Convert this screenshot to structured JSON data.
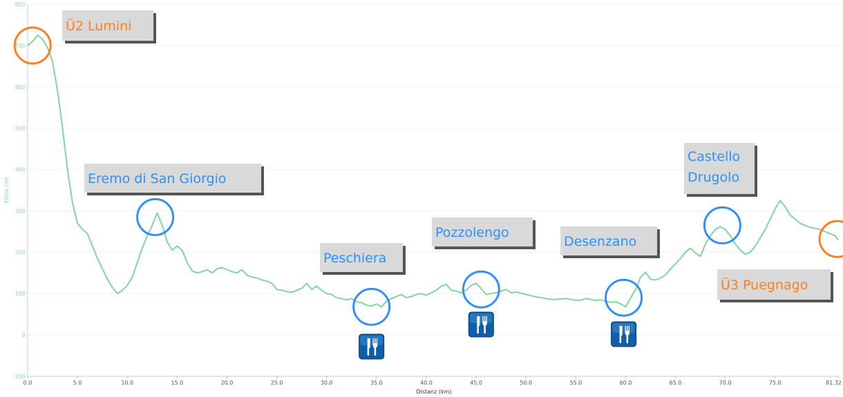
{
  "colors": {
    "line": "#7fd79c",
    "blue": "#2f8fff",
    "orange": "#ff7f1f",
    "label_bg": "#d9d9d9",
    "icon_bg": "#0d5fa8"
  },
  "chart_data": {
    "type": "line",
    "xlabel": "Distanz (km)",
    "ylabel": "Höhe (m)",
    "xlim": [
      0,
      81.32
    ],
    "ylim": [
      -100,
      800
    ],
    "x_ticks": [
      "0.0",
      "5.0",
      "10.0",
      "15.0",
      "20.0",
      "25.0",
      "30.0",
      "35.0",
      "40.0",
      "45.0",
      "50.0",
      "55.0",
      "60.0",
      "65.0",
      "70.0",
      "75.0",
      "81.32"
    ],
    "y_ticks": [
      "-100",
      "0",
      "100",
      "200",
      "300",
      "400",
      "500",
      "600",
      "700",
      "800"
    ],
    "grid": true,
    "series": [
      {
        "x": [
          0,
          0.5,
          1,
          1.5,
          2,
          2.5,
          3,
          3.5,
          4,
          4.5,
          5,
          5.5,
          6,
          6.5,
          7,
          7.5,
          8,
          8.5,
          9,
          9.5,
          10,
          10.5,
          11,
          11.5,
          12,
          12.5,
          13,
          13.5,
          14,
          14.5,
          15,
          15.5,
          16,
          16.5,
          17,
          17.5,
          18,
          18.5,
          19,
          19.5,
          20,
          20.5,
          21,
          21.5,
          22,
          22.5,
          23,
          23.5,
          24,
          24.5,
          25,
          25.5,
          26,
          26.5,
          27,
          27.5,
          28,
          28.5,
          29,
          29.5,
          30,
          30.5,
          31,
          31.5,
          32,
          32.5,
          33,
          33.5,
          34,
          34.5,
          35,
          35.5,
          36,
          36.5,
          37,
          37.5,
          38,
          38.5,
          39,
          39.5,
          40,
          40.5,
          41,
          41.5,
          42,
          42.5,
          43,
          43.5,
          44,
          44.5,
          45,
          45.5,
          46,
          46.5,
          47,
          47.5,
          48,
          48.5,
          49,
          49.5,
          50,
          50.5,
          51,
          51.5,
          52,
          52.5,
          53,
          53.5,
          54,
          54.5,
          55,
          55.5,
          56,
          56.5,
          57,
          57.5,
          58,
          58.5,
          59,
          59.5,
          60,
          60.5,
          61,
          61.5,
          62,
          62.5,
          63,
          63.5,
          64,
          64.5,
          65,
          65.5,
          66,
          66.5,
          67,
          67.5,
          68,
          68.5,
          69,
          69.5,
          70,
          70.5,
          71,
          71.5,
          72,
          72.5,
          73,
          73.5,
          74,
          74.5,
          75,
          75.5,
          76,
          76.5,
          77,
          77.5,
          78,
          78.5,
          79,
          79.5,
          80,
          80.5,
          81,
          81.32
        ],
        "y": [
          700,
          710,
          725,
          715,
          695,
          660,
          590,
          500,
          400,
          320,
          270,
          255,
          245,
          215,
          185,
          160,
          135,
          115,
          100,
          108,
          120,
          140,
          175,
          210,
          240,
          265,
          295,
          265,
          225,
          205,
          215,
          205,
          175,
          155,
          150,
          153,
          158,
          150,
          160,
          163,
          158,
          153,
          150,
          158,
          145,
          140,
          138,
          133,
          130,
          125,
          110,
          108,
          105,
          103,
          108,
          113,
          125,
          110,
          118,
          108,
          100,
          98,
          90,
          88,
          85,
          88,
          80,
          78,
          72,
          70,
          75,
          68,
          82,
          88,
          93,
          98,
          90,
          93,
          98,
          100,
          96,
          102,
          108,
          118,
          122,
          108,
          106,
          102,
          108,
          120,
          125,
          112,
          98,
          100,
          102,
          106,
          110,
          102,
          104,
          101,
          98,
          95,
          92,
          90,
          88,
          86,
          86,
          87,
          88,
          86,
          84,
          84,
          88,
          86,
          83,
          85,
          81,
          79,
          80,
          75,
          68,
          90,
          110,
          140,
          152,
          135,
          133,
          138,
          145,
          160,
          172,
          185,
          200,
          210,
          198,
          190,
          220,
          240,
          255,
          262,
          255,
          240,
          220,
          205,
          195,
          200,
          215,
          235,
          255,
          280,
          305,
          325,
          310,
          290,
          280,
          270,
          265,
          260,
          258,
          255,
          250,
          245,
          240,
          230
        ]
      }
    ],
    "annotations": [
      {
        "text": "Ü2 Lumini",
        "color": "orange",
        "x": 0.5,
        "y": 700
      },
      {
        "text": "Eremo di San Giorgio",
        "color": "blue",
        "x": 12.8,
        "y": 285
      },
      {
        "text": "Peschiera",
        "color": "blue",
        "x": 34.5,
        "y": 68
      },
      {
        "text": "Pozzolengo",
        "color": "blue",
        "x": 45.5,
        "y": 110
      },
      {
        "text": "Desenzano",
        "color": "blue",
        "x": 59.8,
        "y": 90
      },
      {
        "text": [
          "Castello",
          "Drugolo"
        ],
        "color": "blue",
        "x": 69.7,
        "y": 265
      },
      {
        "text": "Ü3 Puegnago",
        "color": "orange",
        "x": 81.0,
        "y": 232
      }
    ],
    "restaurant_icons_at_km": [
      34.5,
      45.5,
      59.8
    ]
  }
}
